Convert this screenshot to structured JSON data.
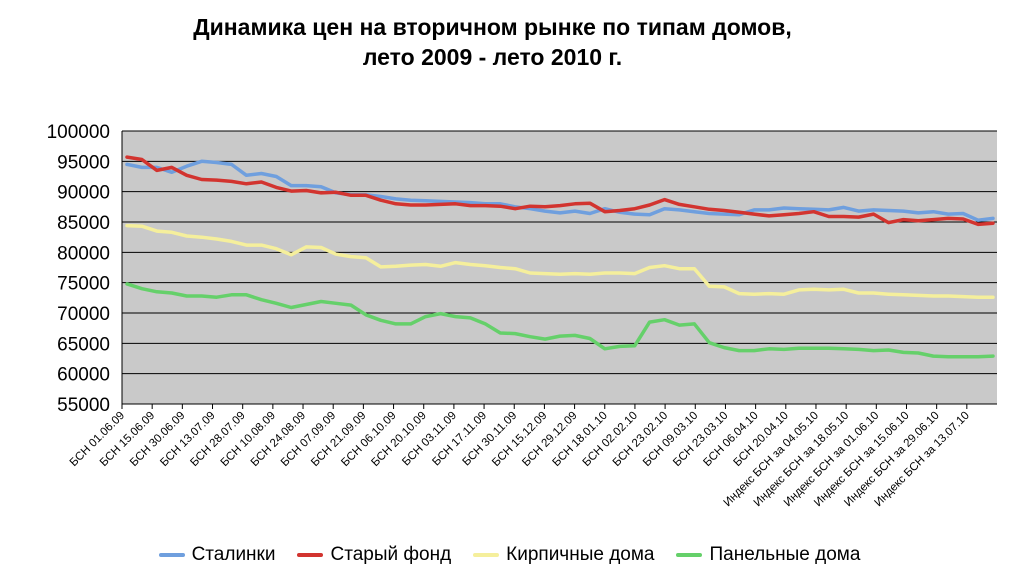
{
  "chart_data": {
    "type": "line",
    "title_line1": "Динамика цен на вторичном рынке по типам домов,",
    "title_line2": "лето 2009 - лето 2010 г.",
    "ylim": [
      55000,
      100000
    ],
    "yticks": [
      "55000",
      "60000",
      "65000",
      "70000",
      "75000",
      "80000",
      "85000",
      "90000",
      "95000",
      "100000"
    ],
    "grid": true,
    "legend_position": "bottom",
    "x_labels": [
      "БСН 01.06.09",
      "БСН 15.06.09",
      "БСН 30.06.09",
      "БСН 13.07.09",
      "БСН 28.07.09",
      "БСН 10.08.09",
      "БСН 24.08.09",
      "БСН 07.09.09",
      "БСН 21.09.09",
      "БСН 06.10.09",
      "БСН 20.10.09",
      "БСН 03.11.09",
      "БСН 17.11.09",
      "БСН 30.11.09",
      "БСН 15.12.09",
      "БСН 29.12.09",
      "БСН 18.01.10",
      "БСН 02.02.10",
      "БСН 23.02.10",
      "БСН 09.03.10",
      "БСН 23.03.10",
      "БСН 06.04.10",
      "БСН 20.04.10",
      "Индекс БСН за 04.05.10",
      "Индекс БСН за 18.05.10",
      "Индекс БСН за 01.06.10",
      "Индекс БСН за 15.06.10",
      "Индекс БСН за 29.06.10",
      "Индекс БСН за 13.07.10"
    ],
    "series": [
      {
        "name": "Сталинки",
        "color": "#6f9fde",
        "values": [
          94500,
          94000,
          94000,
          93200,
          94200,
          95000,
          94800,
          94500,
          92700,
          93000,
          92500,
          91000,
          91000,
          90800,
          89800,
          89500,
          89500,
          89200,
          88800,
          88600,
          88500,
          88400,
          88300,
          88200,
          88000,
          88000,
          87500,
          87200,
          86800,
          86500,
          86800,
          86400,
          87200,
          86600,
          86300,
          86200,
          87200,
          87000,
          86700,
          86400,
          86300,
          86200,
          87000,
          87000,
          87300,
          87200,
          87100,
          87000,
          87400,
          86800,
          87000,
          86900,
          86800,
          86500,
          86700,
          86300,
          86400,
          85300,
          85600
        ]
      },
      {
        "name": "Старый фонд",
        "color": "#d2342f",
        "values": [
          95700,
          95300,
          93500,
          94000,
          92700,
          92000,
          91900,
          91700,
          91300,
          91600,
          90700,
          90100,
          90200,
          89800,
          89900,
          89400,
          89400,
          88600,
          88000,
          87800,
          87800,
          87900,
          88000,
          87700,
          87700,
          87600,
          87200,
          87600,
          87500,
          87700,
          88000,
          88100,
          86700,
          86900,
          87200,
          87800,
          88700,
          87900,
          87500,
          87100,
          86900,
          86600,
          86300,
          86000,
          86200,
          86400,
          86700,
          85900,
          85900,
          85800,
          86300,
          84900,
          85400,
          85200,
          85400,
          85600,
          85500,
          84600,
          84800
        ]
      },
      {
        "name": "Кирпичные дома",
        "color": "#f5ef9c",
        "values": [
          84400,
          84300,
          83500,
          83300,
          82700,
          82500,
          82200,
          81800,
          81200,
          81200,
          80600,
          79600,
          80900,
          80800,
          79700,
          79300,
          79100,
          77600,
          77700,
          77900,
          78000,
          77700,
          78300,
          78000,
          77800,
          77500,
          77300,
          76600,
          76500,
          76400,
          76500,
          76400,
          76600,
          76600,
          76500,
          77500,
          77800,
          77300,
          77300,
          74400,
          74300,
          73200,
          73100,
          73200,
          73100,
          73800,
          73900,
          73800,
          73900,
          73300,
          73300,
          73100,
          73000,
          72900,
          72800,
          72800,
          72700,
          72600,
          72600
        ]
      },
      {
        "name": "Панельные дома",
        "color": "#65d06a",
        "values": [
          74800,
          74000,
          73500,
          73300,
          72800,
          72800,
          72600,
          73000,
          73000,
          72200,
          71600,
          70900,
          71400,
          71900,
          71600,
          71300,
          69700,
          68800,
          68200,
          68200,
          69400,
          69900,
          69400,
          69200,
          68200,
          66700,
          66600,
          66100,
          65700,
          66200,
          66300,
          65800,
          64100,
          64500,
          64600,
          68500,
          68900,
          68000,
          68200,
          65100,
          64300,
          63800,
          63800,
          64100,
          64000,
          64200,
          64200,
          64200,
          64100,
          64000,
          63800,
          63900,
          63500,
          63400,
          62900,
          62800,
          62800,
          62800,
          62900
        ]
      }
    ]
  }
}
